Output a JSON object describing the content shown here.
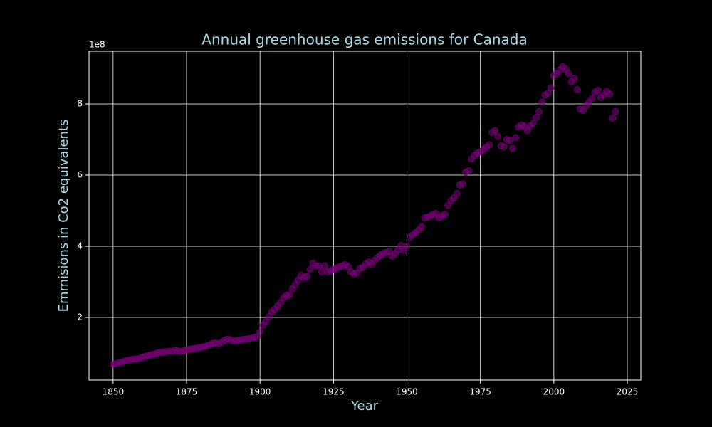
{
  "chart_data": {
    "type": "scatter",
    "title": "Annual greenhouse gas emissions for Canada",
    "x_label": "Year",
    "y_label": "Emmisions in Co2 equivalents",
    "y_offset_label": "1e8",
    "color": "#800080",
    "grid": true,
    "xlim": [
      1841.8,
      2029.6
    ],
    "ylim": [
      0.24,
      9.48
    ],
    "xticks": [
      1850,
      1875,
      1900,
      1925,
      1950,
      1975,
      2000,
      2025
    ],
    "yticks": [
      2,
      4,
      6,
      8
    ],
    "x": [
      1850,
      1851,
      1852,
      1853,
      1854,
      1855,
      1856,
      1857,
      1858,
      1859,
      1860,
      1861,
      1862,
      1863,
      1864,
      1865,
      1866,
      1867,
      1868,
      1869,
      1870,
      1871,
      1872,
      1873,
      1874,
      1875,
      1876,
      1877,
      1878,
      1879,
      1880,
      1881,
      1882,
      1883,
      1884,
      1885,
      1886,
      1887,
      1888,
      1889,
      1890,
      1891,
      1892,
      1893,
      1894,
      1895,
      1896,
      1897,
      1898,
      1899,
      1900,
      1901,
      1902,
      1903,
      1904,
      1905,
      1906,
      1907,
      1908,
      1909,
      1910,
      1911,
      1912,
      1913,
      1914,
      1915,
      1916,
      1917,
      1918,
      1919,
      1920,
      1921,
      1922,
      1923,
      1924,
      1925,
      1926,
      1927,
      1928,
      1929,
      1930,
      1931,
      1932,
      1933,
      1934,
      1935,
      1936,
      1937,
      1938,
      1939,
      1940,
      1941,
      1942,
      1943,
      1944,
      1945,
      1946,
      1947,
      1948,
      1949,
      1950,
      1951,
      1952,
      1953,
      1954,
      1955,
      1956,
      1957,
      1958,
      1959,
      1960,
      1961,
      1962,
      1963,
      1964,
      1965,
      1966,
      1967,
      1968,
      1969,
      1970,
      1971,
      1972,
      1973,
      1974,
      1975,
      1976,
      1977,
      1978,
      1979,
      1980,
      1981,
      1982,
      1983,
      1984,
      1985,
      1986,
      1987,
      1988,
      1989,
      1990,
      1991,
      1992,
      1993,
      1994,
      1995,
      1996,
      1997,
      1998,
      1999,
      2000,
      2001,
      2002,
      2003,
      2004,
      2005,
      2006,
      2007,
      2008,
      2009,
      2010,
      2011,
      2012,
      2013,
      2014,
      2015,
      2016,
      2017,
      2018,
      2019,
      2020,
      2021
    ],
    "values": [
      0.68,
      0.7,
      0.73,
      0.75,
      0.77,
      0.79,
      0.81,
      0.83,
      0.83,
      0.85,
      0.88,
      0.91,
      0.93,
      0.95,
      0.97,
      1.0,
      1.02,
      1.01,
      1.04,
      1.05,
      1.05,
      1.07,
      1.06,
      1.04,
      1.06,
      1.08,
      1.1,
      1.12,
      1.13,
      1.15,
      1.16,
      1.18,
      1.2,
      1.24,
      1.27,
      1.28,
      1.26,
      1.3,
      1.36,
      1.39,
      1.37,
      1.33,
      1.35,
      1.36,
      1.38,
      1.39,
      1.4,
      1.41,
      1.44,
      1.45,
      1.6,
      1.78,
      1.88,
      2.02,
      2.15,
      2.22,
      2.32,
      2.42,
      2.55,
      2.62,
      2.62,
      2.8,
      2.92,
      3.05,
      3.18,
      3.12,
      3.15,
      3.35,
      3.52,
      3.45,
      3.45,
      3.28,
      3.45,
      3.28,
      3.3,
      3.35,
      3.38,
      3.42,
      3.45,
      3.48,
      3.42,
      3.28,
      3.22,
      3.25,
      3.38,
      3.4,
      3.5,
      3.55,
      3.5,
      3.6,
      3.68,
      3.75,
      3.8,
      3.82,
      3.85,
      3.72,
      3.8,
      3.9,
      4.02,
      3.88,
      4.0,
      4.25,
      4.32,
      4.38,
      4.45,
      4.55,
      4.8,
      4.82,
      4.85,
      4.9,
      4.92,
      4.8,
      4.85,
      4.9,
      5.15,
      5.28,
      5.35,
      5.48,
      5.72,
      5.75,
      6.08,
      6.12,
      6.45,
      6.55,
      6.62,
      6.65,
      6.72,
      6.78,
      6.85,
      7.2,
      7.25,
      7.08,
      6.82,
      6.8,
      7.0,
      6.98,
      6.75,
      7.05,
      7.35,
      7.4,
      7.38,
      7.25,
      7.38,
      7.45,
      7.62,
      7.78,
      8.05,
      8.25,
      8.3,
      8.45,
      8.8,
      8.85,
      8.95,
      9.05,
      8.98,
      8.85,
      8.62,
      8.72,
      8.4,
      7.85,
      7.82,
      7.95,
      8.05,
      8.15,
      8.32,
      8.38,
      8.18,
      8.25,
      8.35,
      8.28,
      7.6,
      7.78
    ]
  }
}
